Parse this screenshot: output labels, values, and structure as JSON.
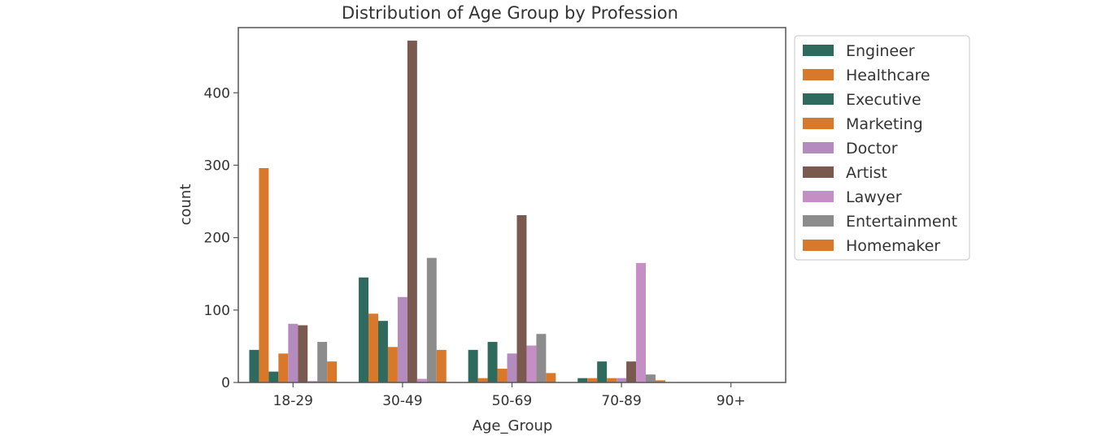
{
  "chart_data": {
    "type": "bar",
    "title": "Distribution of Age Group by Profession",
    "xlabel": "Age_Group",
    "ylabel": "count",
    "categories": [
      "18-29",
      "30-49",
      "50-69",
      "70-89",
      "90+"
    ],
    "ylim": [
      0,
      490
    ],
    "yticks": [
      0,
      100,
      200,
      300,
      400
    ],
    "grid": false,
    "legend_position": "outside-right",
    "series": [
      {
        "name": "Engineer",
        "color": "#2e6b5e",
        "values": [
          45,
          145,
          45,
          6,
          0
        ]
      },
      {
        "name": "Healthcare",
        "color": "#d8782b",
        "values": [
          296,
          95,
          6,
          6,
          0
        ]
      },
      {
        "name": "Executive",
        "color": "#2e6b5e",
        "values": [
          15,
          85,
          56,
          29,
          0
        ]
      },
      {
        "name": "Marketing",
        "color": "#d8782b",
        "values": [
          40,
          49,
          19,
          6,
          0
        ]
      },
      {
        "name": "Doctor",
        "color": "#b48bbf",
        "values": [
          81,
          118,
          40,
          6,
          0
        ]
      },
      {
        "name": "Artist",
        "color": "#7a5a4e",
        "values": [
          79,
          472,
          231,
          29,
          0
        ]
      },
      {
        "name": "Lawyer",
        "color": "#c58ec5",
        "values": [
          2,
          5,
          51,
          165,
          0
        ]
      },
      {
        "name": "Entertainment",
        "color": "#8c8c8c",
        "values": [
          56,
          172,
          67,
          11,
          0
        ]
      },
      {
        "name": "Homemaker",
        "color": "#d8782b",
        "values": [
          29,
          45,
          13,
          3,
          0
        ]
      }
    ]
  }
}
